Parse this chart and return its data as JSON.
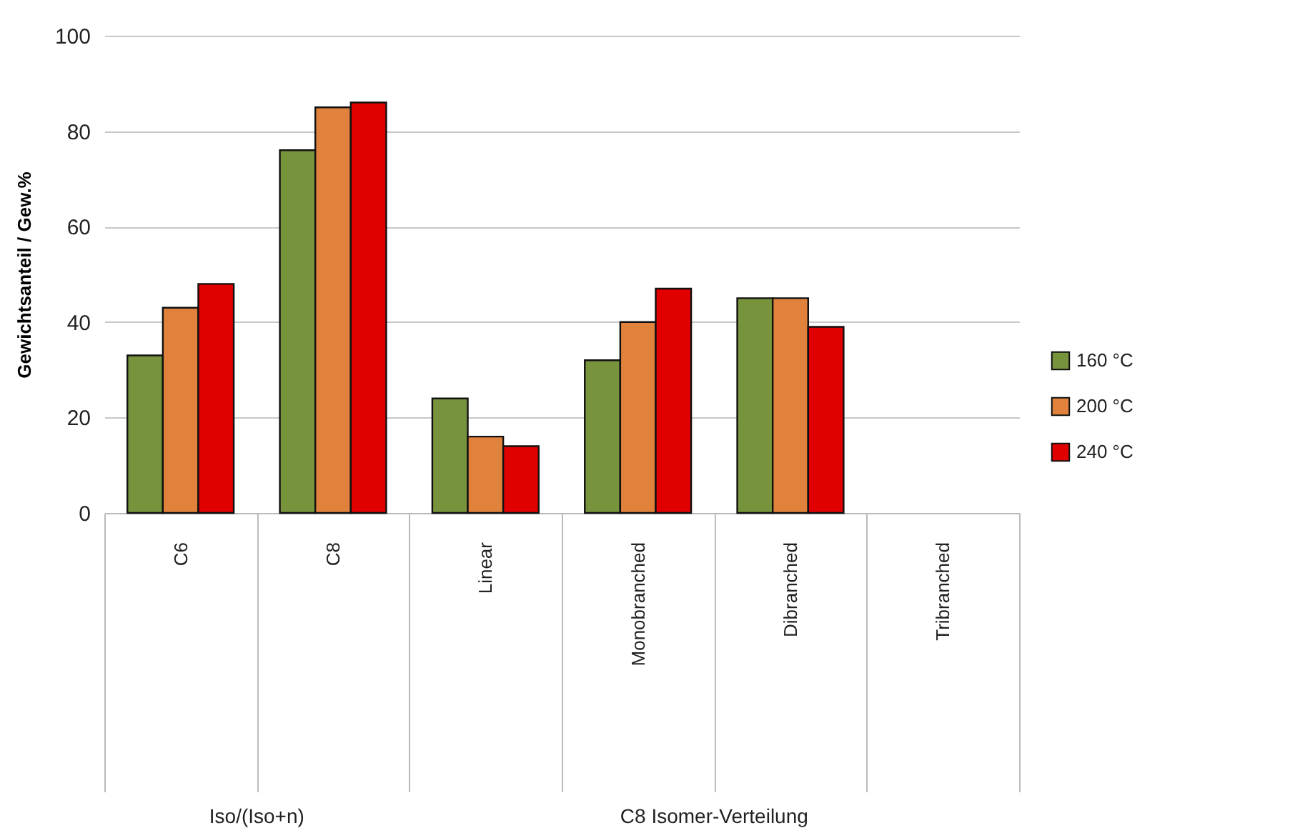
{
  "chart_data": {
    "type": "bar",
    "ylabel": "Gewichtsanteil / Gew.%",
    "categories": [
      "C6",
      "C8",
      "Linear",
      "Monobranched",
      "Dibranched",
      "Tribranched"
    ],
    "series": [
      {
        "name": "160 °C",
        "color": "#77933c",
        "values": [
          33,
          76,
          24,
          32,
          45,
          null
        ]
      },
      {
        "name": "200 °C",
        "color": "#e0823c",
        "values": [
          43,
          85,
          16,
          40,
          45,
          null
        ]
      },
      {
        "name": "240 °C",
        "color": "#e00000",
        "values": [
          48,
          86,
          14,
          47,
          39,
          null
        ]
      }
    ],
    "ylim": [
      0,
      100
    ],
    "yticks": [
      0,
      20,
      40,
      60,
      80,
      100
    ],
    "grid": "y",
    "legend": "right",
    "annotations": [
      "Iso/(Iso+n)",
      "C8 Isomer-Verteilung"
    ]
  }
}
